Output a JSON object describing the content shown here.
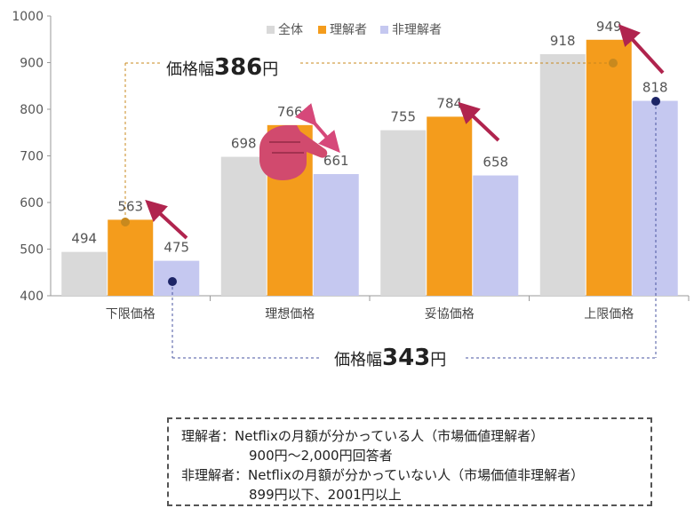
{
  "chart_data": {
    "type": "bar",
    "categories": [
      "下限価格",
      "理想価格",
      "妥協価格",
      "上限価格"
    ],
    "series": [
      {
        "name": "全体",
        "color": "#d9d9d9",
        "values": [
          494,
          698,
          755,
          918
        ],
        "labels": [
          "494",
          "698",
          "755",
          "918"
        ]
      },
      {
        "name": "理解者",
        "color": "#f49c1c",
        "values": [
          563,
          766,
          784,
          949
        ],
        "labels": [
          "563",
          "766",
          "784",
          "949"
        ]
      },
      {
        "name": "非理解者",
        "color": "#c5c8f0",
        "values": [
          475,
          661,
          658,
          818
        ],
        "labels": [
          "475",
          "661",
          "658",
          "818"
        ]
      }
    ],
    "ylim": [
      400,
      1000
    ],
    "yticks": [
      "400",
      "500",
      "600",
      "700",
      "800",
      "900",
      "1000"
    ],
    "legend_position": "top",
    "grid": false,
    "annotations": {
      "upper_range": {
        "prefix": "価格幅",
        "value": "386",
        "unit": "円"
      },
      "lower_range": {
        "prefix": "価格幅",
        "value": "343",
        "unit": "円"
      }
    }
  },
  "note": {
    "line1": "理解者：Netflixの月額が分かっている人（市場価値理解者）",
    "line2": "900円～2,000円回答者",
    "line3": "非理解者：Netflixの月額が分かっていない人（市場価値非理解者）",
    "line4": "899円以下、2001円以上"
  }
}
